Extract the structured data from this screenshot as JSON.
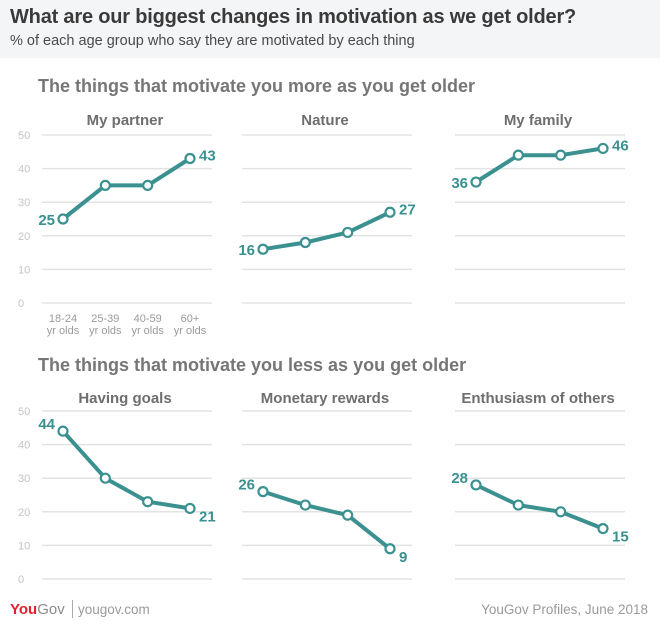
{
  "header": {
    "title": "What are our biggest changes in motivation as we get older?",
    "subtitle": "% of each age group who say they are motivated by each thing"
  },
  "sections": [
    {
      "title": "The things that motivate you more as you get older"
    },
    {
      "title": "The things that motivate you less as you get older"
    }
  ],
  "footer": {
    "logo_you": "You",
    "logo_gov": "Gov",
    "url": "yougov.com",
    "source": "YouGov Profiles, June 2018"
  },
  "colors": {
    "line": "#3a9190",
    "grid": "#e3e3e3",
    "tick": "#c4c4c4",
    "panel_title": "#6e6e6e"
  },
  "chart_data": [
    {
      "type": "line",
      "title": "My partner",
      "section": 0,
      "categories": [
        "18-24 yr olds",
        "25-39 yr olds",
        "40-59 yr olds",
        "60+ yr olds"
      ],
      "values": [
        25,
        35,
        35,
        43
      ],
      "ylim": [
        0,
        50
      ],
      "yticks": [
        0,
        10,
        20,
        30,
        40,
        50
      ],
      "show_yticks": true,
      "show_xticks": true,
      "grid": true
    },
    {
      "type": "line",
      "title": "Nature",
      "section": 0,
      "categories": [
        "18-24 yr olds",
        "25-39 yr olds",
        "40-59 yr olds",
        "60+ yr olds"
      ],
      "values": [
        16,
        18,
        21,
        27
      ],
      "ylim": [
        0,
        50
      ],
      "yticks": [
        0,
        10,
        20,
        30,
        40,
        50
      ],
      "show_yticks": false,
      "show_xticks": false,
      "grid": true
    },
    {
      "type": "line",
      "title": "My family",
      "section": 0,
      "categories": [
        "18-24 yr olds",
        "25-39 yr olds",
        "40-59 yr olds",
        "60+ yr olds"
      ],
      "values": [
        36,
        44,
        44,
        46
      ],
      "ylim": [
        0,
        50
      ],
      "yticks": [
        0,
        10,
        20,
        30,
        40,
        50
      ],
      "show_yticks": false,
      "show_xticks": false,
      "grid": true
    },
    {
      "type": "line",
      "title": "Having goals",
      "section": 1,
      "categories": [
        "18-24 yr olds",
        "25-39 yr olds",
        "40-59 yr olds",
        "60+ yr olds"
      ],
      "values": [
        44,
        30,
        23,
        21
      ],
      "ylim": [
        0,
        50
      ],
      "yticks": [
        0,
        10,
        20,
        30,
        40,
        50
      ],
      "show_yticks": true,
      "show_xticks": false,
      "grid": true
    },
    {
      "type": "line",
      "title": "Monetary rewards",
      "section": 1,
      "categories": [
        "18-24 yr olds",
        "25-39 yr olds",
        "40-59 yr olds",
        "60+ yr olds"
      ],
      "values": [
        26,
        22,
        19,
        9
      ],
      "ylim": [
        0,
        50
      ],
      "yticks": [
        0,
        10,
        20,
        30,
        40,
        50
      ],
      "show_yticks": false,
      "show_xticks": false,
      "grid": true
    },
    {
      "type": "line",
      "title": "Enthusiasm of others",
      "section": 1,
      "categories": [
        "18-24 yr olds",
        "25-39 yr olds",
        "40-59 yr olds",
        "60+ yr olds"
      ],
      "values": [
        28,
        22,
        20,
        15
      ],
      "ylim": [
        0,
        50
      ],
      "yticks": [
        0,
        10,
        20,
        30,
        40,
        50
      ],
      "show_yticks": false,
      "show_xticks": false,
      "grid": true
    }
  ]
}
